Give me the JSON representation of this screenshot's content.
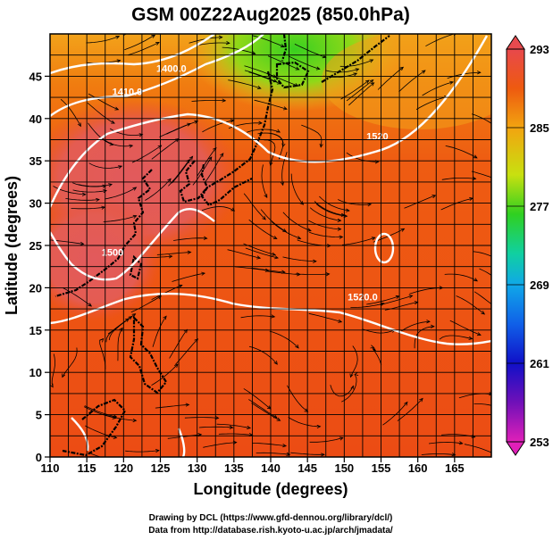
{
  "title": "GSM 00Z22Aug2025 (850.0hPa)",
  "xlabel": "Longitude (degrees)",
  "ylabel": "Latitude  (degrees)",
  "x_ticks": [
    "110",
    "115",
    "120",
    "125",
    "130",
    "135",
    "140",
    "145",
    "150",
    "155",
    "160",
    "165"
  ],
  "y_ticks": [
    "0",
    "5",
    "10",
    "15",
    "20",
    "25",
    "30",
    "35",
    "40",
    "45"
  ],
  "colorbar": {
    "labels": [
      "293",
      "285",
      "277",
      "269",
      "261",
      "253"
    ],
    "min": 253,
    "max": 293
  },
  "contour_labels": [
    {
      "text": "1400.0",
      "lon": 126.5,
      "lat": 45.5
    },
    {
      "text": "1410.0",
      "lon": 120.5,
      "lat": 42.8
    },
    {
      "text": "1520",
      "lon": 154.5,
      "lat": 37.5
    },
    {
      "text": "1520.0",
      "lon": 152.5,
      "lat": 18.5
    },
    {
      "text": "1500",
      "lon": 118.5,
      "lat": 23.8
    }
  ],
  "credits": {
    "line1": "Drawing by DCL (https://www.gfd-dennou.org/library/dcl/)",
    "line2": "Data from http://database.rish.kyoto-u.ac.jp/arch/jmadata/"
  },
  "colors": {
    "warmest": "#e45a58",
    "warm": "#ee4d18",
    "orange": "#f07a10",
    "yellow": "#f0c020",
    "green": "#40d020",
    "contour": "#ffffff",
    "coast": "#000000"
  }
}
